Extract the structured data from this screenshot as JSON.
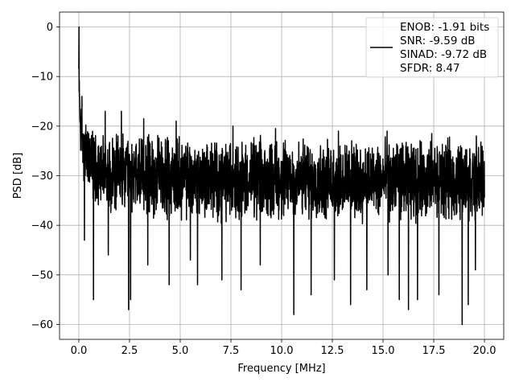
{
  "chart_data": {
    "type": "line",
    "title": "",
    "xlabel": "Frequency [MHz]",
    "ylabel": "PSD [dB]",
    "xlim": [
      -0.95,
      20.95
    ],
    "ylim": [
      -63,
      3
    ],
    "xticks": [
      0.0,
      2.5,
      5.0,
      7.5,
      10.0,
      12.5,
      15.0,
      17.5,
      20.0
    ],
    "xtick_labels": [
      "0.0",
      "2.5",
      "5.0",
      "7.5",
      "10.0",
      "12.5",
      "15.0",
      "17.5",
      "20.0"
    ],
    "yticks": [
      0,
      -10,
      -20,
      -30,
      -40,
      -50,
      -60
    ],
    "ytick_labels": [
      "0",
      "−10",
      "−20",
      "−30",
      "−40",
      "−50",
      "−60"
    ],
    "grid": true,
    "legend_position": "top-right",
    "series": [
      {
        "color": "#000000",
        "legend_lines": [
          "ENOB: -1.91 bits",
          "SNR: -9.59 dB",
          "SINAD: -9.72 dB",
          "SFDR: 8.47"
        ],
        "description": "noisy power spectral density from 0 to 20 MHz; peak at 0 dB near 0 MHz, noise floor mostly between -20 and -42 dB with dips to about -60 dB",
        "x": [
          0.0,
          0.02,
          0.05,
          0.08,
          0.12,
          0.2,
          0.35,
          0.5,
          0.75,
          1.0,
          1.5,
          2.0,
          2.5,
          3.0,
          4.0,
          5.0,
          6.0,
          7.0,
          8.0,
          9.0,
          10.0,
          11.0,
          12.0,
          13.0,
          14.0,
          15.0,
          16.0,
          17.0,
          18.0,
          19.0,
          20.0
        ],
        "upper": [
          0,
          -8,
          -12,
          -14,
          -15,
          -17,
          -18,
          -19,
          -19.5,
          -20,
          -20.5,
          -21,
          -21,
          -21,
          -21,
          -21.5,
          -21.5,
          -21.5,
          -21.5,
          -21.5,
          -21.5,
          -21.5,
          -22,
          -22,
          -22,
          -22,
          -22,
          -22,
          -22,
          -22,
          -22
        ],
        "lower": [
          -10,
          -16,
          -22,
          -25,
          -28,
          -31,
          -33,
          -34.5,
          -36,
          -37,
          -38,
          -38.5,
          -39,
          -39,
          -39.5,
          -39.5,
          -40,
          -40,
          -40,
          -40,
          -40,
          -40,
          -40,
          -40,
          -40,
          -40,
          -40,
          -40,
          -40,
          -40,
          -40
        ],
        "dips": [
          [
            0.28,
            -43
          ],
          [
            0.72,
            -55
          ],
          [
            1.45,
            -46
          ],
          [
            2.45,
            -57
          ],
          [
            2.55,
            -55
          ],
          [
            3.4,
            -48
          ],
          [
            4.45,
            -52
          ],
          [
            5.5,
            -47
          ],
          [
            5.85,
            -52
          ],
          [
            7.05,
            -51
          ],
          [
            8.0,
            -53
          ],
          [
            8.95,
            -48
          ],
          [
            10.6,
            -58
          ],
          [
            11.45,
            -54
          ],
          [
            12.6,
            -51
          ],
          [
            13.4,
            -56
          ],
          [
            14.2,
            -53
          ],
          [
            15.25,
            -50
          ],
          [
            15.8,
            -55
          ],
          [
            16.25,
            -57
          ],
          [
            16.7,
            -55
          ],
          [
            17.75,
            -54
          ],
          [
            18.9,
            -60
          ],
          [
            19.2,
            -56
          ],
          [
            19.55,
            -49
          ]
        ],
        "spikes": [
          [
            0.15,
            -14
          ],
          [
            1.3,
            -17
          ],
          [
            2.1,
            -17
          ],
          [
            3.2,
            -18.5
          ],
          [
            4.8,
            -19
          ],
          [
            7.6,
            -20
          ],
          [
            9.7,
            -20.5
          ],
          [
            12.8,
            -21
          ],
          [
            15.2,
            -21
          ],
          [
            17.4,
            -21.5
          ],
          [
            19.6,
            -22
          ]
        ]
      }
    ]
  }
}
